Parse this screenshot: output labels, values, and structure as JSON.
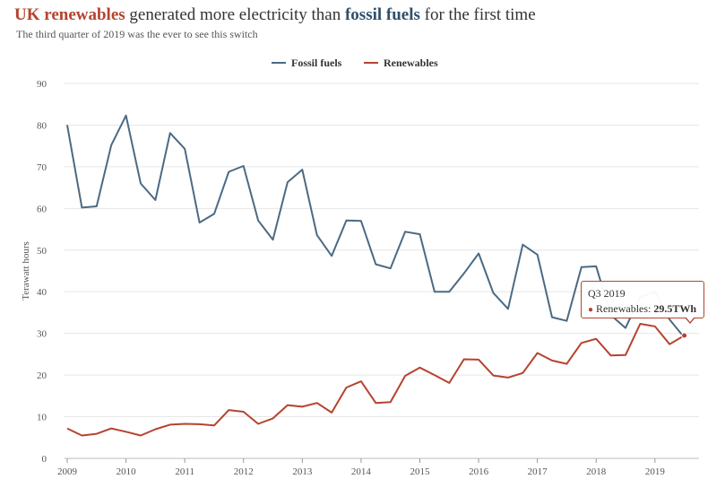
{
  "title": {
    "renewables": "UK renewables",
    "middle": " generated more electricity than ",
    "fossil": "fossil fuels",
    "end": " for the first time"
  },
  "subtitle": "The third quarter of 2019 was the ever to see this switch",
  "colors": {
    "fossil": "#4b6a84",
    "renewables": "#b5432f"
  },
  "tooltip": {
    "header": "Q3 2019",
    "series": "Renewables",
    "value": "29.5TWh"
  },
  "chart_data": {
    "type": "line",
    "ylabel": "Terawatt hours",
    "xlabel": "",
    "ylim": [
      0,
      90
    ],
    "yticks": [
      0,
      10,
      20,
      30,
      40,
      50,
      60,
      70,
      80,
      90
    ],
    "xlim": [
      2009,
      2019.75
    ],
    "xticks": [
      2009,
      2010,
      2011,
      2012,
      2013,
      2014,
      2015,
      2016,
      2017,
      2018,
      2019
    ],
    "xtick_labels": [
      "2009",
      "2010",
      "2011",
      "2012",
      "2013",
      "2014",
      "2015",
      "2016",
      "2017",
      "2018",
      "2019"
    ],
    "grid": true,
    "legend": "top-center",
    "x": [
      2009.0,
      2009.25,
      2009.5,
      2009.75,
      2010.0,
      2010.25,
      2010.5,
      2010.75,
      2011.0,
      2011.25,
      2011.5,
      2011.75,
      2012.0,
      2012.25,
      2012.5,
      2012.75,
      2013.0,
      2013.25,
      2013.5,
      2013.75,
      2014.0,
      2014.25,
      2014.5,
      2014.75,
      2015.0,
      2015.25,
      2015.5,
      2015.75,
      2016.0,
      2016.25,
      2016.5,
      2016.75,
      2017.0,
      2017.25,
      2017.5,
      2017.75,
      2018.0,
      2018.25,
      2018.5,
      2018.75,
      2019.0,
      2019.25,
      2019.5
    ],
    "series": [
      {
        "name": "Fossil fuels",
        "values": [
          80.0,
          60.2,
          60.5,
          75.2,
          82.3,
          66.0,
          62.0,
          78.1,
          74.3,
          56.6,
          58.7,
          68.8,
          70.2,
          57.1,
          52.5,
          66.3,
          69.3,
          53.6,
          48.6,
          57.1,
          57.0,
          46.6,
          45.6,
          54.4,
          53.8,
          40.0,
          40.0,
          44.4,
          49.2,
          39.7,
          35.9,
          51.3,
          48.9,
          33.9,
          33.0,
          45.9,
          46.1,
          34.4,
          31.3,
          38.8,
          40.0,
          33.3,
          29.0
        ]
      },
      {
        "name": "Renewables",
        "values": [
          7.2,
          5.5,
          5.9,
          7.2,
          6.4,
          5.5,
          7.0,
          8.1,
          8.3,
          8.2,
          7.9,
          11.6,
          11.2,
          8.3,
          9.6,
          12.8,
          12.4,
          13.3,
          11.0,
          17.0,
          18.5,
          13.3,
          13.5,
          19.8,
          21.8,
          20.0,
          18.1,
          23.8,
          23.7,
          19.9,
          19.4,
          20.5,
          25.3,
          23.5,
          22.7,
          27.7,
          28.7,
          24.7,
          24.8,
          32.3,
          31.7,
          27.4,
          29.5
        ]
      }
    ]
  }
}
